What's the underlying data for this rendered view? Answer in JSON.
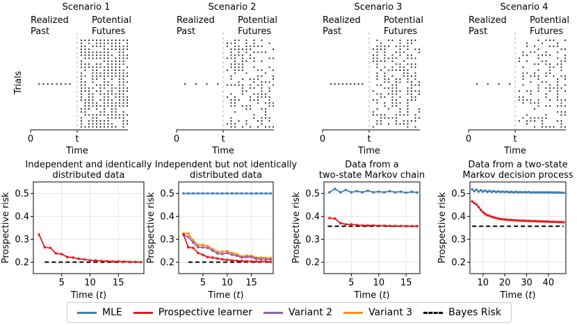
{
  "colors": {
    "mle": "#3b7fb8",
    "prospective": "#e41a1c",
    "variant2": "#9b59b6",
    "variant3": "#ff8c00",
    "bayes": "#000000",
    "grid": "#e6e6e6",
    "divider": "#bbbbbb"
  },
  "scenarios": [
    {
      "title": "Scenario 1",
      "past_label": [
        "Realized",
        "Past"
      ],
      "future_label": [
        "Potential",
        "Futures"
      ],
      "ylabel": "Trials",
      "x_ticks": [
        "0",
        "t"
      ],
      "xlabel": "Time"
    },
    {
      "title": "Scenario 2",
      "past_label": [
        "Realized",
        "Past"
      ],
      "future_label": [
        "Potential",
        "Futures"
      ],
      "ylabel": "",
      "x_ticks": [
        "0",
        "t"
      ],
      "xlabel": "Time"
    },
    {
      "title": "Scenario 3",
      "past_label": [
        "Realized",
        "Past"
      ],
      "future_label": [
        "Potential",
        "Futures"
      ],
      "ylabel": "",
      "x_ticks": [
        "0",
        "t"
      ],
      "xlabel": "Time"
    },
    {
      "title": "Scenario 4",
      "past_label": [
        "Realized",
        "Past"
      ],
      "future_label": [
        "Potential",
        "Futures"
      ],
      "ylabel": "",
      "x_ticks": [
        "0",
        "t"
      ],
      "xlabel": "Time"
    }
  ],
  "chart_data": [
    {
      "type": "line",
      "title": [
        "Independent and identically",
        "distributed data"
      ],
      "xlabel": "Time (t)",
      "ylabel": "Prospective risk",
      "xlim": [
        0,
        19.5
      ],
      "ylim": [
        0.15,
        0.55
      ],
      "xticks": [
        5,
        10,
        15
      ],
      "yticks": [
        0.2,
        0.3,
        0.4,
        0.5
      ],
      "x": [
        1,
        2,
        3,
        4,
        5,
        6,
        7,
        8,
        9,
        10,
        11,
        12,
        13,
        14,
        15,
        16,
        17,
        18,
        19
      ],
      "series": [
        {
          "name": "Prospective learner",
          "key": "prospective",
          "values": [
            0.32,
            0.265,
            0.262,
            0.238,
            0.235,
            0.222,
            0.22,
            0.215,
            0.212,
            0.208,
            0.207,
            0.205,
            0.204,
            0.203,
            0.203,
            0.202,
            0.201,
            0.201,
            0.2
          ]
        }
      ],
      "bayes_risk": 0.2,
      "bayes_x": [
        2,
        19
      ]
    },
    {
      "type": "line",
      "title": [
        "Independent but not identically",
        "distributed data"
      ],
      "xlabel": "Time (t)",
      "ylabel": "Prospective risk",
      "xlim": [
        0,
        19.5
      ],
      "ylim": [
        0.15,
        0.55
      ],
      "xticks": [
        5,
        10,
        15
      ],
      "yticks": [
        0.2,
        0.3,
        0.4,
        0.5
      ],
      "x": [
        1,
        2,
        3,
        4,
        5,
        6,
        7,
        8,
        9,
        10,
        11,
        12,
        13,
        14,
        15,
        16,
        17,
        18,
        19
      ],
      "series": [
        {
          "name": "MLE",
          "key": "mle",
          "values": [
            0.5,
            0.5,
            0.5,
            0.5,
            0.5,
            0.5,
            0.5,
            0.5,
            0.5,
            0.5,
            0.5,
            0.5,
            0.5,
            0.5,
            0.5,
            0.5,
            0.5,
            0.5,
            0.5
          ]
        },
        {
          "name": "Variant 3",
          "key": "variant3",
          "values": [
            0.325,
            0.325,
            0.295,
            0.275,
            0.275,
            0.27,
            0.258,
            0.245,
            0.245,
            0.248,
            0.24,
            0.235,
            0.225,
            0.228,
            0.228,
            0.22,
            0.22,
            0.218,
            0.218
          ]
        },
        {
          "name": "Variant 2",
          "key": "variant2",
          "values": [
            0.32,
            0.31,
            0.285,
            0.265,
            0.265,
            0.262,
            0.25,
            0.238,
            0.235,
            0.24,
            0.232,
            0.228,
            0.22,
            0.222,
            0.222,
            0.215,
            0.213,
            0.212,
            0.212
          ]
        },
        {
          "name": "Prospective learner",
          "key": "prospective",
          "values": [
            0.32,
            0.265,
            0.262,
            0.24,
            0.232,
            0.222,
            0.22,
            0.216,
            0.212,
            0.21,
            0.208,
            0.206,
            0.205,
            0.204,
            0.203,
            0.203,
            0.202,
            0.202,
            0.201
          ]
        }
      ],
      "bayes_risk": 0.2,
      "bayes_x": [
        2,
        19
      ]
    },
    {
      "type": "line",
      "title": [
        "Data from a",
        "two-state Markov chain"
      ],
      "xlabel": "Time (t)",
      "ylabel": "Prospective risk",
      "xlim": [
        0,
        17.5
      ],
      "ylim": [
        0.15,
        0.55
      ],
      "xticks": [
        5,
        10,
        15
      ],
      "yticks": [
        0.2,
        0.3,
        0.4,
        0.5
      ],
      "x": [
        1,
        2,
        3,
        4,
        5,
        6,
        7,
        8,
        9,
        10,
        11,
        12,
        13,
        14,
        15,
        16,
        17
      ],
      "series": [
        {
          "name": "MLE",
          "key": "mle",
          "values": [
            0.505,
            0.52,
            0.505,
            0.515,
            0.505,
            0.51,
            0.505,
            0.512,
            0.505,
            0.508,
            0.505,
            0.51,
            0.505,
            0.508,
            0.503,
            0.507,
            0.504
          ]
        },
        {
          "name": "Prospective learner",
          "key": "prospective",
          "values": [
            0.392,
            0.39,
            0.37,
            0.365,
            0.365,
            0.362,
            0.36,
            0.36,
            0.36,
            0.359,
            0.359,
            0.358,
            0.358,
            0.358,
            0.357,
            0.357,
            0.357
          ]
        }
      ],
      "bayes_risk": 0.357,
      "bayes_x": [
        0.7,
        17
      ]
    },
    {
      "type": "line",
      "title": [
        "Data from a two-state",
        "Markov decision process"
      ],
      "xlabel": "Time (t)",
      "ylabel": "Prospective risk",
      "xlim": [
        4,
        48
      ],
      "ylim": [
        0.15,
        0.55
      ],
      "xticks": [
        10,
        20,
        30,
        40
      ],
      "yticks": [
        0.2,
        0.3,
        0.4,
        0.5
      ],
      "x": [
        5,
        6,
        7,
        8,
        9,
        10,
        11,
        12,
        13,
        14,
        15,
        16,
        17,
        18,
        19,
        20,
        21,
        22,
        23,
        24,
        25,
        26,
        27,
        28,
        29,
        30,
        31,
        32,
        33,
        34,
        35,
        36,
        37,
        38,
        39,
        40,
        41,
        42,
        43,
        44,
        45,
        46,
        47
      ],
      "series": [
        {
          "name": "MLE",
          "key": "mle",
          "values": [
            0.518,
            0.51,
            0.516,
            0.508,
            0.514,
            0.508,
            0.512,
            0.507,
            0.511,
            0.507,
            0.51,
            0.506,
            0.509,
            0.506,
            0.508,
            0.506,
            0.508,
            0.505,
            0.507,
            0.505,
            0.507,
            0.505,
            0.506,
            0.505,
            0.506,
            0.505,
            0.506,
            0.504,
            0.505,
            0.504,
            0.505,
            0.504,
            0.505,
            0.504,
            0.505,
            0.504,
            0.505,
            0.504,
            0.504,
            0.504,
            0.504,
            0.503,
            0.503
          ]
        },
        {
          "name": "Prospective learner",
          "key": "prospective",
          "values": [
            0.465,
            0.458,
            0.452,
            0.44,
            0.428,
            0.418,
            0.41,
            0.405,
            0.402,
            0.398,
            0.395,
            0.392,
            0.39,
            0.388,
            0.387,
            0.386,
            0.385,
            0.384,
            0.384,
            0.383,
            0.382,
            0.382,
            0.381,
            0.381,
            0.381,
            0.38,
            0.38,
            0.379,
            0.379,
            0.379,
            0.378,
            0.378,
            0.378,
            0.377,
            0.377,
            0.377,
            0.376,
            0.376,
            0.376,
            0.375,
            0.375,
            0.375,
            0.374
          ]
        }
      ],
      "bayes_risk": 0.357,
      "bayes_x": [
        5,
        47
      ]
    }
  ],
  "legend": [
    {
      "key": "mle",
      "label": "MLE",
      "style": "solid"
    },
    {
      "key": "prospective",
      "label": "Prospective learner",
      "style": "solid"
    },
    {
      "key": "variant2",
      "label": "Variant 2",
      "style": "solid"
    },
    {
      "key": "variant3",
      "label": "Variant 3",
      "style": "solid"
    },
    {
      "key": "bayes",
      "label": "Bayes Risk",
      "style": "dashed"
    }
  ]
}
